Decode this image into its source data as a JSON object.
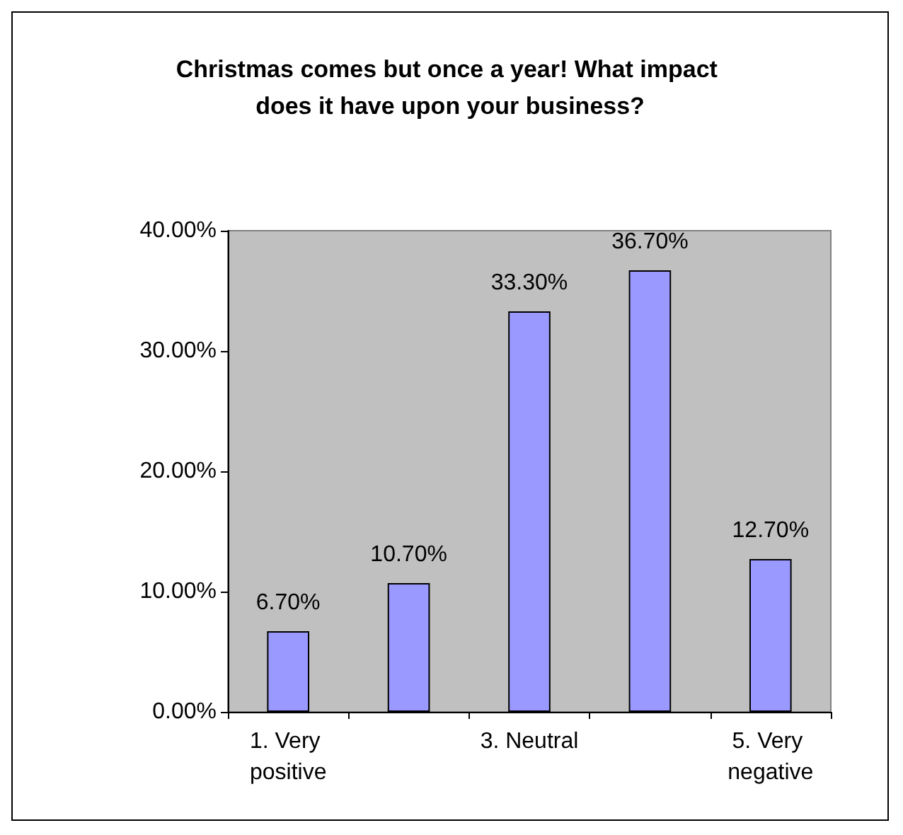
{
  "chart_data": {
    "type": "bar",
    "title": "Christmas comes but once a year! What impact does it have upon your business?",
    "categories": [
      "1. Very positive",
      null,
      "3. Neutral",
      null,
      "5. Very negative"
    ],
    "values": [
      6.7,
      10.7,
      33.3,
      36.7,
      12.7
    ],
    "value_labels": [
      "6.70%",
      "10.70%",
      "33.30%",
      "36.70%",
      "12.70%"
    ],
    "color": "#9999ff",
    "ylim": [
      0,
      40
    ],
    "yticks": [
      {
        "value": 0,
        "label": "0.00%"
      },
      {
        "value": 10,
        "label": "10.00%"
      },
      {
        "value": 20,
        "label": "20.00%"
      },
      {
        "value": 30,
        "label": "30.00%"
      },
      {
        "value": 40,
        "label": "40.00%"
      }
    ],
    "grid": false
  }
}
